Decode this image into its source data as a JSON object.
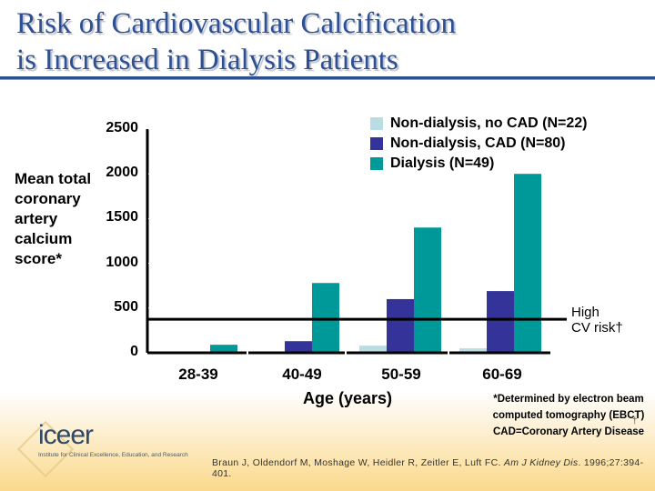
{
  "slide": {
    "title_line1": "Risk of Cardiovascular Calcification",
    "title_line2": "is Increased in Dialysis Patients",
    "footnote_lines": [
      "*Determined by electron beam",
      "computed tomography (EBCT)",
      "CAD=Coronary Artery Disease"
    ],
    "dagger": "†",
    "citation_authors": "Braun J, Oldendorf M, Moshage W, Heidler R, Zeitler E, Luft FC. ",
    "citation_journal": "Am J Kidney Dis",
    "citation_rest": ". 1996;27:394-401.",
    "logo": {
      "name": "iceer",
      "subtitle": "Institute for Clinical Excellence, Education, and Research"
    }
  },
  "chart_data": {
    "type": "bar",
    "title": "Risk of Cardiovascular Calcification is Increased in Dialysis Patients",
    "xlabel": "Age (years)",
    "ylabel": "Mean total\ncoronary\nartery\ncalcium\nscore*",
    "categories": [
      "28-39",
      "40-49",
      "50-59",
      "60-69"
    ],
    "series": [
      {
        "name": "Non-dialysis, no CAD (N=22)",
        "color": "#b9dde2",
        "values": [
          0,
          0,
          80,
          50
        ]
      },
      {
        "name": "Non-dialysis, CAD (N=80)",
        "color": "#333399",
        "values": [
          0,
          130,
          600,
          690
        ]
      },
      {
        "name": "Dialysis (N=49)",
        "color": "#009999",
        "values": [
          90,
          780,
          1400,
          2000
        ]
      }
    ],
    "yticks": [
      0,
      500,
      1000,
      1500,
      2000,
      2500
    ],
    "ylim": [
      0,
      2500
    ],
    "grid": false,
    "legend_position": "top-right",
    "reference_line": {
      "value": 375,
      "label_line1": "High",
      "label_line2": "CV risk†"
    }
  }
}
